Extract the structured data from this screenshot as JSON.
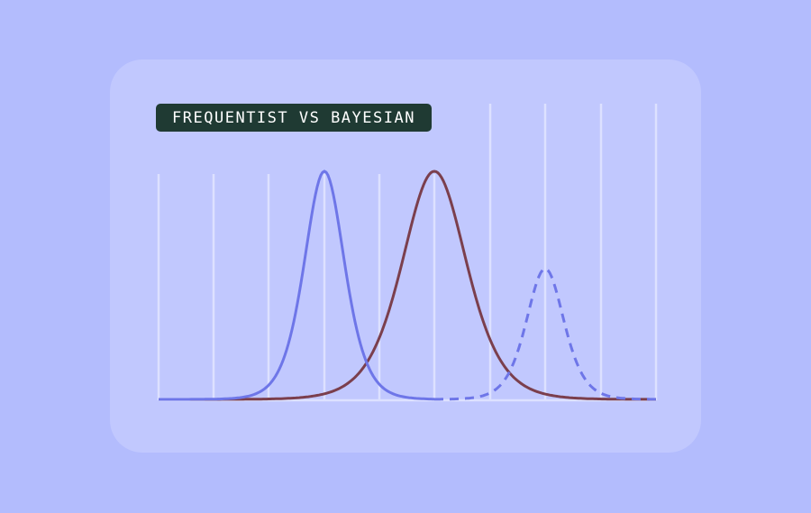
{
  "header": {
    "title": "FREQUENTIST VS BAYESIAN"
  }
}
